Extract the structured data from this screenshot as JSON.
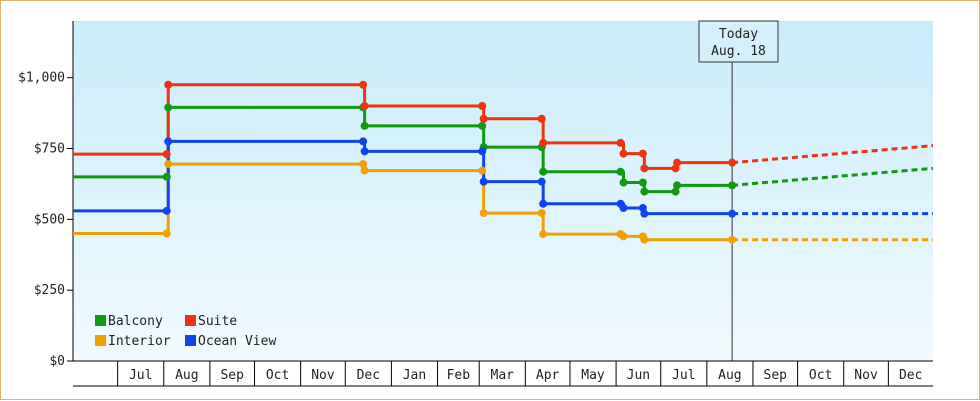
{
  "chart_data": {
    "type": "line",
    "step": true,
    "title": "",
    "xlabel": "",
    "ylabel": "",
    "ylim": [
      0,
      1200
    ],
    "yticks": [
      0,
      250,
      500,
      750,
      1000
    ],
    "ytick_labels": [
      "$0",
      "$250",
      "$500",
      "$750",
      "$1,000"
    ],
    "x_range": [
      "2022-06-01",
      "2023-12-31"
    ],
    "x_month_labels": [
      {
        "label": "Jul",
        "start": "2022-07-01",
        "end": "2022-08-01"
      },
      {
        "label": "Aug",
        "start": "2022-08-01",
        "end": "2022-09-01"
      },
      {
        "label": "Sep",
        "start": "2022-09-01",
        "end": "2022-10-01"
      },
      {
        "label": "Oct",
        "start": "2022-10-01",
        "end": "2022-11-01"
      },
      {
        "label": "Nov",
        "start": "2022-11-01",
        "end": "2022-12-01"
      },
      {
        "label": "Dec",
        "start": "2022-12-01",
        "end": "2023-01-01"
      },
      {
        "label": "Jan",
        "start": "2023-01-01",
        "end": "2023-02-01"
      },
      {
        "label": "Feb",
        "start": "2023-02-01",
        "end": "2023-03-01"
      },
      {
        "label": "Mar",
        "start": "2023-03-01",
        "end": "2023-04-01"
      },
      {
        "label": "Apr",
        "start": "2023-04-01",
        "end": "2023-05-01"
      },
      {
        "label": "May",
        "start": "2023-05-01",
        "end": "2023-06-01"
      },
      {
        "label": "Jun",
        "start": "2023-06-01",
        "end": "2023-07-01"
      },
      {
        "label": "Jul",
        "start": "2023-07-01",
        "end": "2023-08-01"
      },
      {
        "label": "Aug",
        "start": "2023-08-01",
        "end": "2023-09-01"
      },
      {
        "label": "Sep",
        "start": "2023-09-01",
        "end": "2023-10-01"
      },
      {
        "label": "Oct",
        "start": "2023-10-01",
        "end": "2023-11-01"
      },
      {
        "label": "Nov",
        "start": "2023-11-01",
        "end": "2023-12-01"
      },
      {
        "label": "Dec",
        "start": "2023-12-01",
        "end": "2023-12-31"
      }
    ],
    "today": {
      "date": "2023-08-18",
      "label_line1": "Today",
      "label_line2": "Aug. 18"
    },
    "grid": false,
    "legend": {
      "position": "bottom-left"
    },
    "projection_end": {
      "date": "2023-12-31"
    },
    "series": [
      {
        "name": "Balcony",
        "color": "#119911",
        "points": [
          {
            "x": "2022-06-01",
            "y": 650
          },
          {
            "x": "2022-08-03",
            "y": 650
          },
          {
            "x": "2022-08-04",
            "y": 895
          },
          {
            "x": "2022-12-13",
            "y": 895
          },
          {
            "x": "2022-12-14",
            "y": 830
          },
          {
            "x": "2023-03-03",
            "y": 830
          },
          {
            "x": "2023-03-04",
            "y": 755
          },
          {
            "x": "2023-04-12",
            "y": 755
          },
          {
            "x": "2023-04-13",
            "y": 668
          },
          {
            "x": "2023-06-04",
            "y": 668
          },
          {
            "x": "2023-06-06",
            "y": 630
          },
          {
            "x": "2023-06-19",
            "y": 630
          },
          {
            "x": "2023-06-20",
            "y": 598
          },
          {
            "x": "2023-07-11",
            "y": 598
          },
          {
            "x": "2023-07-12",
            "y": 620
          },
          {
            "x": "2023-08-18",
            "y": 620
          }
        ],
        "projection_end_y": 680
      },
      {
        "name": "Suite",
        "color": "#ee3311",
        "points": [
          {
            "x": "2022-06-01",
            "y": 730
          },
          {
            "x": "2022-08-03",
            "y": 730
          },
          {
            "x": "2022-08-04",
            "y": 975
          },
          {
            "x": "2022-12-13",
            "y": 975
          },
          {
            "x": "2022-12-14",
            "y": 900
          },
          {
            "x": "2023-03-03",
            "y": 900
          },
          {
            "x": "2023-03-04",
            "y": 855
          },
          {
            "x": "2023-04-12",
            "y": 855
          },
          {
            "x": "2023-04-13",
            "y": 770
          },
          {
            "x": "2023-06-04",
            "y": 770
          },
          {
            "x": "2023-06-06",
            "y": 732
          },
          {
            "x": "2023-06-19",
            "y": 732
          },
          {
            "x": "2023-06-20",
            "y": 680
          },
          {
            "x": "2023-07-11",
            "y": 680
          },
          {
            "x": "2023-07-12",
            "y": 700
          },
          {
            "x": "2023-08-18",
            "y": 700
          }
        ],
        "projection_end_y": 760
      },
      {
        "name": "Interior",
        "color": "#f0a000",
        "points": [
          {
            "x": "2022-06-01",
            "y": 450
          },
          {
            "x": "2022-08-03",
            "y": 450
          },
          {
            "x": "2022-08-04",
            "y": 695
          },
          {
            "x": "2022-12-13",
            "y": 695
          },
          {
            "x": "2022-12-14",
            "y": 672
          },
          {
            "x": "2023-03-03",
            "y": 672
          },
          {
            "x": "2023-03-04",
            "y": 522
          },
          {
            "x": "2023-04-12",
            "y": 522
          },
          {
            "x": "2023-04-13",
            "y": 448
          },
          {
            "x": "2023-06-04",
            "y": 448
          },
          {
            "x": "2023-06-06",
            "y": 440
          },
          {
            "x": "2023-06-19",
            "y": 440
          },
          {
            "x": "2023-06-20",
            "y": 428
          },
          {
            "x": "2023-08-18",
            "y": 428
          }
        ],
        "projection_end_y": 428
      },
      {
        "name": "Ocean View",
        "color": "#1144ee",
        "points": [
          {
            "x": "2022-06-01",
            "y": 530
          },
          {
            "x": "2022-08-03",
            "y": 530
          },
          {
            "x": "2022-08-04",
            "y": 775
          },
          {
            "x": "2022-12-13",
            "y": 775
          },
          {
            "x": "2022-12-14",
            "y": 740
          },
          {
            "x": "2023-03-03",
            "y": 740
          },
          {
            "x": "2023-03-04",
            "y": 633
          },
          {
            "x": "2023-04-12",
            "y": 633
          },
          {
            "x": "2023-04-13",
            "y": 555
          },
          {
            "x": "2023-06-04",
            "y": 555
          },
          {
            "x": "2023-06-06",
            "y": 540
          },
          {
            "x": "2023-06-19",
            "y": 540
          },
          {
            "x": "2023-06-20",
            "y": 520
          },
          {
            "x": "2023-08-18",
            "y": 520
          }
        ],
        "projection_end_y": 520
      }
    ]
  }
}
